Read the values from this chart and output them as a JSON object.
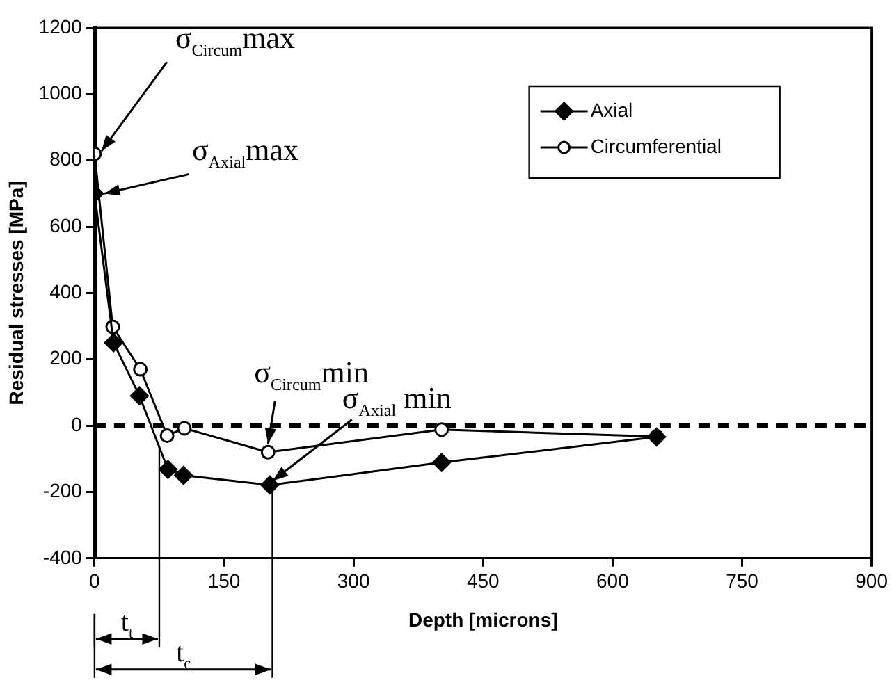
{
  "chart_data": {
    "type": "line",
    "xlabel": "Depth [microns]",
    "ylabel": "Residual stresses [MPa]",
    "xlim": [
      0,
      900
    ],
    "xticks": [
      0,
      150,
      300,
      450,
      600,
      750,
      900
    ],
    "ylim": [
      -400,
      1200
    ],
    "yticks": [
      -400,
      -200,
      0,
      200,
      400,
      600,
      800,
      1000,
      1200
    ],
    "grid": false,
    "legend": "top right",
    "line_style": "solid",
    "series": [
      {
        "name": "Axial",
        "color": "#000000",
        "marker": "diamond",
        "x": [
          0,
          22,
          52,
          85,
          103,
          203,
          402,
          651
        ],
        "values": [
          700,
          250,
          90,
          -132,
          -150,
          -179,
          -111,
          -34
        ]
      },
      {
        "name": "Circumferential",
        "color": "#000000",
        "marker": "circle",
        "x": [
          0,
          21,
          53,
          84,
          104,
          201,
          402,
          651
        ],
        "values": [
          820,
          298,
          170,
          -30,
          -8,
          -80,
          -12,
          -33
        ]
      }
    ],
    "ref_lines": [
      {
        "axis": "y",
        "value": 0,
        "line_style": "dashed",
        "color": "#000000"
      },
      {
        "axis": "x",
        "value": 75,
        "label": "t$_{t}$",
        "color": "#000000"
      },
      {
        "axis": "x",
        "value": 206,
        "label": "t$_{c}$",
        "color": "#000000"
      }
    ],
    "annotations": [
      {
        "text": "σ$_{Circum}$max",
        "x": 0,
        "y": 820
      },
      {
        "text": "σ$_{Axial}$max",
        "x": 0,
        "y": 700
      },
      {
        "text": "σ$_{Circum}$min",
        "x": 201,
        "y": -80
      },
      {
        "text": "σ$_{Axial}$ min",
        "x": 203,
        "y": -179
      }
    ]
  }
}
